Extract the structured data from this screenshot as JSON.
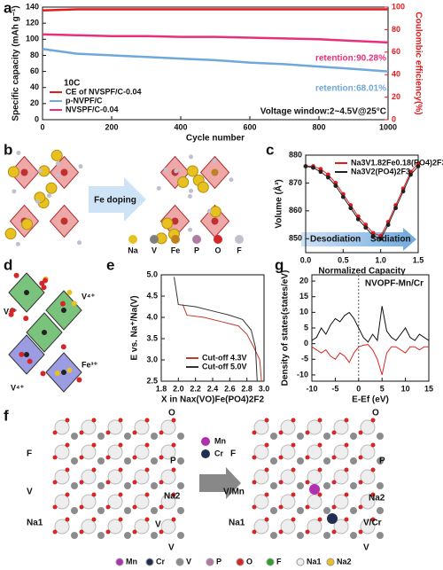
{
  "panels": {
    "letters": [
      "a",
      "b",
      "c",
      "d",
      "e",
      "f",
      "g"
    ],
    "b": {
      "arrow": "Fe doping",
      "legend": [
        "Na",
        "V",
        "Fe",
        "P",
        "O",
        "F"
      ]
    },
    "d": {
      "labels": [
        "V⁴⁺",
        "V⁴⁺",
        "V⁴⁺",
        "Fe³⁺"
      ]
    },
    "f": {
      "left": [
        "F",
        "O",
        "P",
        "V",
        "Na2",
        "Na1",
        "V",
        "V"
      ],
      "right": [
        "F",
        "O",
        "P",
        "V/Mn",
        "Na2",
        "Na1",
        "V/Cr",
        "V"
      ],
      "dopants": [
        "Mn",
        "Cr"
      ],
      "legend": [
        "Mn",
        "Cr",
        "V",
        "P",
        "O",
        "F",
        "Na1",
        "Na2"
      ]
    }
  },
  "chart_data": [
    {
      "type": "line",
      "xlabel": "Cycle number",
      "ylabel": "Specific capacity (mAh g⁻¹)",
      "y2label": "Coulombic efficiency(%)",
      "x": [
        0,
        100,
        200,
        300,
        400,
        500,
        600,
        700,
        800,
        900,
        1000
      ],
      "xlim": [
        0,
        1000
      ],
      "xticks": [
        0,
        200,
        400,
        600,
        800,
        1000
      ],
      "ylim": [
        0,
        140
      ],
      "yticks": [
        0,
        20,
        40,
        60,
        80,
        100,
        120,
        140
      ],
      "y2lim": [
        0,
        100
      ],
      "y2ticks": [
        0,
        20,
        40,
        60,
        80,
        100
      ],
      "series": [
        {
          "name": "CE of NVSPF/C-0.04",
          "color": "#e41a1c",
          "axis": "y2",
          "values": [
            97,
            98,
            98,
            98,
            98,
            98,
            98,
            98,
            98,
            98,
            98
          ]
        },
        {
          "name": "p-NVPF/C",
          "color": "#6fa8dc",
          "values": [
            88,
            82,
            80,
            78,
            76,
            74,
            71,
            69,
            66,
            63,
            60
          ]
        },
        {
          "name": "NVSPF/C-0.04",
          "color": "#e8307a",
          "values": [
            106,
            105,
            104,
            104,
            103,
            103,
            102,
            101,
            100,
            98,
            96
          ]
        }
      ],
      "annotations": [
        "10C",
        "retention:90.28%",
        "retention:68.01%",
        "Voltage window:2~4.5V@25°C"
      ],
      "legend": "lower left"
    },
    {
      "type": "line",
      "xlabel": "Normalized Capacity",
      "ylabel": "Volume (Å³)",
      "x": [
        0,
        0.1,
        0.2,
        0.3,
        0.4,
        0.5,
        0.6,
        0.7,
        0.8,
        0.9,
        1.0,
        1.1,
        1.2,
        1.3,
        1.4,
        1.5
      ],
      "xlim": [
        0,
        1.5
      ],
      "xticks": [
        {
          "value": 0,
          "label": "0.0"
        },
        0.5,
        {
          "value": 1,
          "label": "1.0"
        },
        1.5
      ],
      "ylim": [
        845,
        880
      ],
      "yticks": [
        850,
        860,
        870,
        880
      ],
      "markers": true,
      "series": [
        {
          "name": "Na3V1.82Fe0.18(PO4)2F3",
          "color": "#e41a1c",
          "values": [
            876,
            876,
            875,
            873,
            870,
            866,
            862,
            858,
            855,
            852,
            851,
            856,
            862,
            868,
            874,
            877
          ]
        },
        {
          "name": "Na3V2(PO4)2F3",
          "color": "#222222",
          "values": [
            876,
            875.5,
            874,
            872,
            869,
            865,
            861,
            857,
            854,
            851,
            850,
            855,
            861,
            867,
            873,
            876
          ]
        }
      ],
      "annotations": [
        "Desodiation",
        "Sodiation"
      ],
      "legend": "upper right"
    },
    {
      "type": "line",
      "xlabel": "X in Nax(VO)Fe(PO4)2F2",
      "ylabel": "E vs. Na⁺/Na(V)",
      "xlim": [
        1.8,
        3.0
      ],
      "xticks": [
        1.8,
        {
          "value": 2,
          "label": "2.0"
        },
        2.2,
        2.4,
        2.6,
        2.8,
        {
          "value": 3,
          "label": "3.0"
        }
      ],
      "ylim": [
        2.5,
        5.0
      ],
      "yticks": [
        2.5,
        {
          "value": 3,
          "label": "3.0"
        },
        3.5,
        {
          "value": 4,
          "label": "4.0"
        },
        4.5,
        {
          "value": 5,
          "label": "5.0"
        }
      ],
      "series": [
        {
          "name": "Cut-off 4.3V",
          "color": "#c0392b",
          "x": [
            2.05,
            2.1,
            2.3,
            2.5,
            2.7,
            2.8,
            2.88,
            2.95,
            2.97
          ],
          "values": [
            4.3,
            4.05,
            4.0,
            3.9,
            3.8,
            3.6,
            3.3,
            3.0,
            2.5
          ]
        },
        {
          "name": "Cut-off 5.0V",
          "color": "#333333",
          "x": [
            1.95,
            2.0,
            2.2,
            2.4,
            2.6,
            2.75,
            2.85,
            2.9,
            2.92
          ],
          "values": [
            4.95,
            4.3,
            4.25,
            4.15,
            4.05,
            3.95,
            3.7,
            3.3,
            2.5
          ]
        }
      ],
      "legend": "lower left"
    },
    {
      "type": "line",
      "title": "NVOPF-Mn/Cr",
      "xlabel": "E-Ef (eV)",
      "ylabel": "Density of states(states/eV)",
      "x": [
        -10,
        -9,
        -8,
        -7,
        -6,
        -5,
        -4,
        -3,
        -2,
        -1,
        0,
        1,
        2,
        3,
        4,
        5,
        6,
        7,
        8,
        9,
        10,
        11,
        12,
        13,
        14,
        15
      ],
      "xlim": [
        -10,
        15
      ],
      "xticks": [
        -10,
        -5,
        0,
        5,
        10,
        15
      ],
      "ylim": [
        -12,
        22
      ],
      "yticks": [
        -10,
        -5,
        0,
        5,
        10,
        15,
        20
      ],
      "series": [
        {
          "color": "#111111",
          "values": [
            1,
            2,
            5,
            3,
            6,
            8,
            7,
            9,
            10,
            8,
            5,
            2,
            0.5,
            3,
            1,
            12,
            4,
            2,
            1,
            3,
            5,
            2,
            1,
            3,
            2,
            1
          ]
        },
        {
          "color": "#d62728",
          "values": [
            -1,
            -2,
            -3,
            -2,
            -4,
            -5,
            -3,
            -4,
            -6,
            -3,
            -1,
            -0.5,
            -0.3,
            -2,
            -5,
            -10,
            -3,
            -1,
            -1,
            -2,
            -3,
            -1,
            -1,
            -2,
            -1,
            -1
          ]
        }
      ]
    }
  ]
}
